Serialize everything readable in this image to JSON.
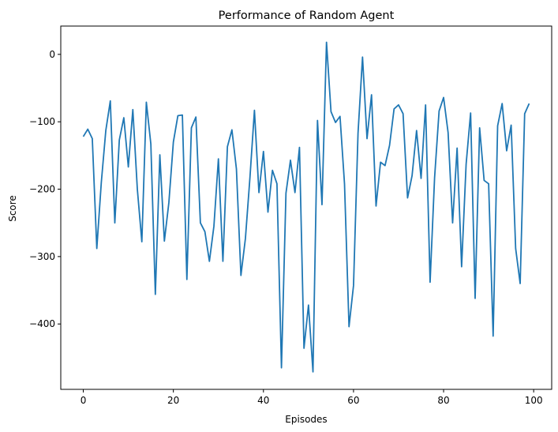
{
  "chart_data": {
    "type": "line",
    "title": "Performance of Random Agent",
    "xlabel": "Episodes",
    "ylabel": "Score",
    "xlim": [
      -5,
      104
    ],
    "ylim": [
      -497,
      42
    ],
    "xticks": [
      0,
      20,
      40,
      60,
      80,
      100
    ],
    "yticks": [
      0,
      -100,
      -200,
      -300,
      -400
    ],
    "grid": false,
    "color": "#1f77b4",
    "series": [
      {
        "x": [
          0,
          1,
          2,
          3,
          4,
          5,
          6,
          7,
          8,
          9,
          10,
          11,
          12,
          13,
          14,
          15,
          16,
          17,
          18,
          19,
          20,
          21,
          22,
          23,
          24,
          25,
          26,
          27,
          28,
          29,
          30,
          31,
          32,
          33,
          34,
          35,
          36,
          37,
          38,
          39,
          40,
          41,
          42,
          43,
          44,
          45,
          46,
          47,
          48,
          49,
          50,
          51,
          52,
          53,
          54,
          55,
          56,
          57,
          58,
          59,
          60,
          61,
          62,
          63,
          64,
          65,
          66,
          67,
          68,
          69,
          70,
          71,
          72,
          73,
          74,
          75,
          76,
          77,
          78,
          79,
          80,
          81,
          82,
          83,
          84,
          85,
          86,
          87,
          88,
          89,
          90,
          91,
          92,
          93,
          94,
          95,
          96,
          97,
          98,
          99
        ],
        "values": [
          -122,
          -111,
          -125,
          -288,
          -190,
          -113,
          -69,
          -250,
          -127,
          -94,
          -167,
          -82,
          -200,
          -278,
          -71,
          -133,
          -356,
          -149,
          -277,
          -220,
          -130,
          -91,
          -90,
          -334,
          -109,
          -93,
          -250,
          -263,
          -307,
          -255,
          -155,
          -307,
          -137,
          -112,
          -170,
          -328,
          -273,
          -183,
          -83,
          -205,
          -144,
          -234,
          -172,
          -192,
          -465,
          -206,
          -157,
          -205,
          -138,
          -436,
          -372,
          -471,
          -98,
          -223,
          18,
          -85,
          -101,
          -92,
          -192,
          -404,
          -343,
          -117,
          -4,
          -125,
          -60,
          -225,
          -160,
          -165,
          -135,
          -81,
          -75,
          -88,
          -213,
          -180,
          -113,
          -184,
          -75,
          -338,
          -183,
          -84,
          -64,
          -116,
          -250,
          -139,
          -315,
          -163,
          -87,
          -362,
          -109,
          -187,
          -192,
          -418,
          -106,
          -73,
          -143,
          -105,
          -288,
          -340,
          -88,
          -73
        ]
      }
    ]
  }
}
